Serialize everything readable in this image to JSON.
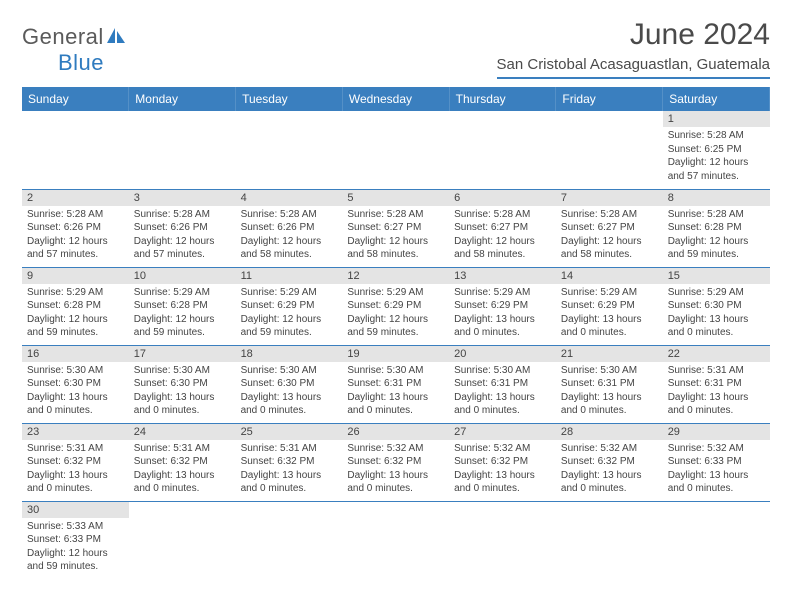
{
  "logo": {
    "text1": "General",
    "text2": "Blue"
  },
  "title": "June 2024",
  "location": "San Cristobal Acasaguastlan, Guatemala",
  "colors": {
    "header_bg": "#3a7fbf",
    "header_text": "#ffffff",
    "daynum_bg": "#e4e4e4",
    "border": "#3a7fbf",
    "logo_gray": "#5a5a5a",
    "logo_blue": "#2f7bbf"
  },
  "daysOfWeek": [
    "Sunday",
    "Monday",
    "Tuesday",
    "Wednesday",
    "Thursday",
    "Friday",
    "Saturday"
  ],
  "weeks": [
    [
      null,
      null,
      null,
      null,
      null,
      null,
      {
        "n": "1",
        "sr": "5:28 AM",
        "ss": "6:25 PM",
        "dl": "12 hours and 57 minutes."
      }
    ],
    [
      {
        "n": "2",
        "sr": "5:28 AM",
        "ss": "6:26 PM",
        "dl": "12 hours and 57 minutes."
      },
      {
        "n": "3",
        "sr": "5:28 AM",
        "ss": "6:26 PM",
        "dl": "12 hours and 57 minutes."
      },
      {
        "n": "4",
        "sr": "5:28 AM",
        "ss": "6:26 PM",
        "dl": "12 hours and 58 minutes."
      },
      {
        "n": "5",
        "sr": "5:28 AM",
        "ss": "6:27 PM",
        "dl": "12 hours and 58 minutes."
      },
      {
        "n": "6",
        "sr": "5:28 AM",
        "ss": "6:27 PM",
        "dl": "12 hours and 58 minutes."
      },
      {
        "n": "7",
        "sr": "5:28 AM",
        "ss": "6:27 PM",
        "dl": "12 hours and 58 minutes."
      },
      {
        "n": "8",
        "sr": "5:28 AM",
        "ss": "6:28 PM",
        "dl": "12 hours and 59 minutes."
      }
    ],
    [
      {
        "n": "9",
        "sr": "5:29 AM",
        "ss": "6:28 PM",
        "dl": "12 hours and 59 minutes."
      },
      {
        "n": "10",
        "sr": "5:29 AM",
        "ss": "6:28 PM",
        "dl": "12 hours and 59 minutes."
      },
      {
        "n": "11",
        "sr": "5:29 AM",
        "ss": "6:29 PM",
        "dl": "12 hours and 59 minutes."
      },
      {
        "n": "12",
        "sr": "5:29 AM",
        "ss": "6:29 PM",
        "dl": "12 hours and 59 minutes."
      },
      {
        "n": "13",
        "sr": "5:29 AM",
        "ss": "6:29 PM",
        "dl": "13 hours and 0 minutes."
      },
      {
        "n": "14",
        "sr": "5:29 AM",
        "ss": "6:29 PM",
        "dl": "13 hours and 0 minutes."
      },
      {
        "n": "15",
        "sr": "5:29 AM",
        "ss": "6:30 PM",
        "dl": "13 hours and 0 minutes."
      }
    ],
    [
      {
        "n": "16",
        "sr": "5:30 AM",
        "ss": "6:30 PM",
        "dl": "13 hours and 0 minutes."
      },
      {
        "n": "17",
        "sr": "5:30 AM",
        "ss": "6:30 PM",
        "dl": "13 hours and 0 minutes."
      },
      {
        "n": "18",
        "sr": "5:30 AM",
        "ss": "6:30 PM",
        "dl": "13 hours and 0 minutes."
      },
      {
        "n": "19",
        "sr": "5:30 AM",
        "ss": "6:31 PM",
        "dl": "13 hours and 0 minutes."
      },
      {
        "n": "20",
        "sr": "5:30 AM",
        "ss": "6:31 PM",
        "dl": "13 hours and 0 minutes."
      },
      {
        "n": "21",
        "sr": "5:30 AM",
        "ss": "6:31 PM",
        "dl": "13 hours and 0 minutes."
      },
      {
        "n": "22",
        "sr": "5:31 AM",
        "ss": "6:31 PM",
        "dl": "13 hours and 0 minutes."
      }
    ],
    [
      {
        "n": "23",
        "sr": "5:31 AM",
        "ss": "6:32 PM",
        "dl": "13 hours and 0 minutes."
      },
      {
        "n": "24",
        "sr": "5:31 AM",
        "ss": "6:32 PM",
        "dl": "13 hours and 0 minutes."
      },
      {
        "n": "25",
        "sr": "5:31 AM",
        "ss": "6:32 PM",
        "dl": "13 hours and 0 minutes."
      },
      {
        "n": "26",
        "sr": "5:32 AM",
        "ss": "6:32 PM",
        "dl": "13 hours and 0 minutes."
      },
      {
        "n": "27",
        "sr": "5:32 AM",
        "ss": "6:32 PM",
        "dl": "13 hours and 0 minutes."
      },
      {
        "n": "28",
        "sr": "5:32 AM",
        "ss": "6:32 PM",
        "dl": "13 hours and 0 minutes."
      },
      {
        "n": "29",
        "sr": "5:32 AM",
        "ss": "6:33 PM",
        "dl": "13 hours and 0 minutes."
      }
    ],
    [
      {
        "n": "30",
        "sr": "5:33 AM",
        "ss": "6:33 PM",
        "dl": "12 hours and 59 minutes."
      },
      null,
      null,
      null,
      null,
      null,
      null
    ]
  ],
  "labels": {
    "sunrise": "Sunrise:",
    "sunset": "Sunset:",
    "daylight": "Daylight:"
  }
}
